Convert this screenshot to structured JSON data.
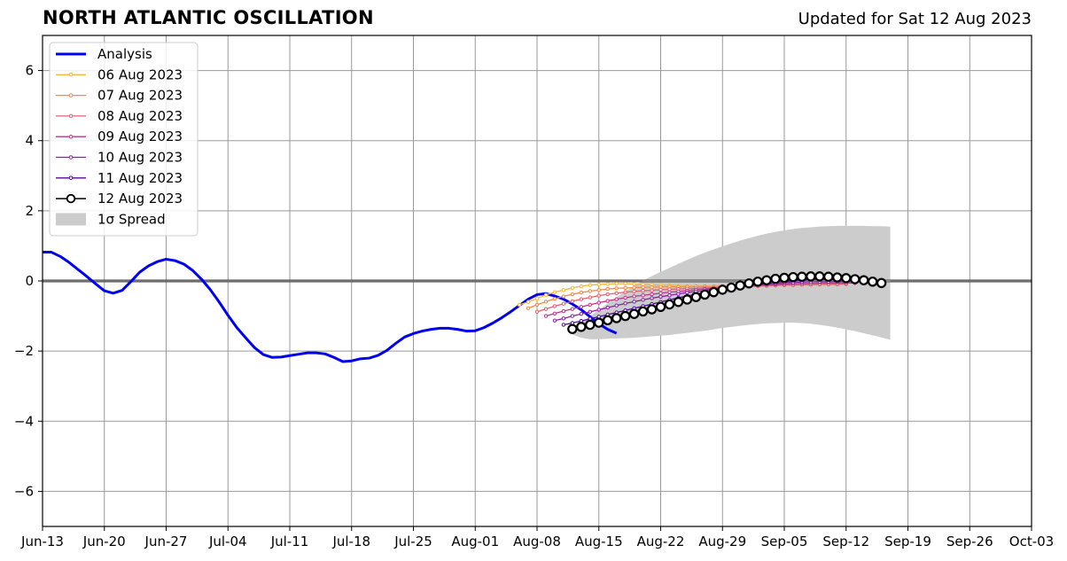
{
  "header": {
    "title": "NORTH ATLANTIC OSCILLATION",
    "subtitle": "Updated for Sat 12 Aug 2023"
  },
  "chart_data": {
    "type": "line",
    "title": "NORTH ATLANTIC OSCILLATION",
    "subtitle": "Updated for Sat 12 Aug 2023",
    "xlabel": "",
    "ylabel": "",
    "x_unit": "date",
    "xlim": [
      "2023-06-13",
      "2023-10-03"
    ],
    "ylim": [
      -7,
      7
    ],
    "x_ticks": [
      "Jun-13",
      "Jun-20",
      "Jun-27",
      "Jul-04",
      "Jul-11",
      "Jul-18",
      "Jul-25",
      "Aug-01",
      "Aug-08",
      "Aug-15",
      "Aug-22",
      "Aug-29",
      "Sep-05",
      "Sep-12",
      "Sep-19",
      "Sep-26",
      "Oct-03"
    ],
    "y_ticks": [
      -6,
      -4,
      -2,
      0,
      2,
      4,
      6
    ],
    "y_tick_labels": [
      "−6",
      "−4",
      "−2",
      "0",
      "2",
      "4",
      "6"
    ],
    "grid": true,
    "legend_position": "top-left",
    "zero_line": 0,
    "analysis": {
      "name": "Analysis",
      "color": "#0000ee",
      "start_date": "2023-06-13",
      "end_date": "2023-08-12",
      "values": [
        0.82,
        0.82,
        0.7,
        0.53,
        0.33,
        0.13,
        -0.08,
        -0.28,
        -0.35,
        -0.27,
        -0.02,
        0.25,
        0.43,
        0.55,
        0.62,
        0.58,
        0.48,
        0.3,
        0.05,
        -0.25,
        -0.6,
        -0.98,
        -1.33,
        -1.62,
        -1.9,
        -2.1,
        -2.18,
        -2.17,
        -2.13,
        -2.09,
        -2.05,
        -2.05,
        -2.08,
        -2.18,
        -2.3,
        -2.28,
        -2.22,
        -2.2,
        -2.12,
        -1.98,
        -1.78,
        -1.6,
        -1.5,
        -1.43,
        -1.38,
        -1.35,
        -1.35,
        -1.38,
        -1.43,
        -1.42,
        -1.33,
        -1.2,
        -1.05,
        -0.88,
        -0.7,
        -0.52,
        -0.39,
        -0.36,
        -0.43,
        -0.52,
        -0.66,
        -0.82,
        -1.02,
        -1.22,
        -1.38,
        -1.49
      ]
    },
    "forecasts": [
      {
        "name": "06 Aug 2023",
        "color": "#f5b83a",
        "start_date": "2023-08-06",
        "values": [
          -0.68,
          -0.6,
          -0.5,
          -0.4,
          -0.32,
          -0.26,
          -0.2,
          -0.15,
          -0.12,
          -0.1,
          -0.09,
          -0.08,
          -0.08,
          -0.09,
          -0.1,
          -0.11,
          -0.12,
          -0.13,
          -0.14,
          -0.15,
          -0.15,
          -0.15,
          -0.15,
          -0.15,
          -0.15,
          -0.14,
          -0.14,
          -0.14,
          -0.13,
          -0.13,
          -0.12,
          -0.12,
          -0.11,
          -0.11,
          -0.1,
          -0.1
        ]
      },
      {
        "name": "07 Aug 2023",
        "color": "#ef8a47",
        "start_date": "2023-08-07",
        "values": [
          -0.78,
          -0.68,
          -0.59,
          -0.51,
          -0.44,
          -0.38,
          -0.33,
          -0.29,
          -0.26,
          -0.23,
          -0.21,
          -0.2,
          -0.19,
          -0.18,
          -0.18,
          -0.17,
          -0.17,
          -0.17,
          -0.17,
          -0.16,
          -0.16,
          -0.16,
          -0.15,
          -0.15,
          -0.14,
          -0.14,
          -0.13,
          -0.13,
          -0.12,
          -0.12,
          -0.11,
          -0.11,
          -0.1,
          -0.1,
          -0.09,
          -0.09
        ]
      },
      {
        "name": "08 Aug 2023",
        "color": "#e0626e",
        "start_date": "2023-08-08",
        "values": [
          -0.88,
          -0.8,
          -0.72,
          -0.65,
          -0.58,
          -0.52,
          -0.47,
          -0.42,
          -0.38,
          -0.35,
          -0.32,
          -0.3,
          -0.28,
          -0.27,
          -0.25,
          -0.24,
          -0.23,
          -0.22,
          -0.21,
          -0.2,
          -0.19,
          -0.18,
          -0.17,
          -0.16,
          -0.15,
          -0.15,
          -0.14,
          -0.13,
          -0.12,
          -0.12,
          -0.11,
          -0.11,
          -0.1,
          -0.1,
          -0.1,
          -0.09
        ]
      },
      {
        "name": "09 Aug 2023",
        "color": "#b8378c",
        "start_date": "2023-08-09",
        "values": [
          -1.0,
          -0.93,
          -0.86,
          -0.8,
          -0.74,
          -0.68,
          -0.62,
          -0.57,
          -0.52,
          -0.48,
          -0.44,
          -0.41,
          -0.38,
          -0.35,
          -0.32,
          -0.3,
          -0.28,
          -0.25,
          -0.23,
          -0.21,
          -0.19,
          -0.17,
          -0.15,
          -0.14,
          -0.12,
          -0.11,
          -0.1,
          -0.09,
          -0.08,
          -0.07,
          -0.07,
          -0.06,
          -0.06,
          -0.06,
          -0.06,
          -0.06
        ]
      },
      {
        "name": "10 Aug 2023",
        "color": "#8b1fa3",
        "start_date": "2023-08-10",
        "values": [
          -1.13,
          -1.07,
          -1.0,
          -0.94,
          -0.88,
          -0.82,
          -0.76,
          -0.7,
          -0.64,
          -0.59,
          -0.54,
          -0.49,
          -0.45,
          -0.41,
          -0.37,
          -0.33,
          -0.3,
          -0.27,
          -0.24,
          -0.21,
          -0.18,
          -0.16,
          -0.13,
          -0.11,
          -0.09,
          -0.07,
          -0.05,
          -0.04,
          -0.03,
          -0.02,
          -0.02,
          -0.02,
          -0.02,
          -0.02,
          -0.02,
          -0.02
        ]
      },
      {
        "name": "11 Aug 2023",
        "color": "#4b0c91",
        "start_date": "2023-08-11",
        "values": [
          -1.25,
          -1.2,
          -1.14,
          -1.08,
          -1.02,
          -0.96,
          -0.9,
          -0.84,
          -0.78,
          -0.72,
          -0.66,
          -0.6,
          -0.54,
          -0.48,
          -0.43,
          -0.38,
          -0.33,
          -0.28,
          -0.24,
          -0.2,
          -0.16,
          -0.12,
          -0.09,
          -0.06,
          -0.03,
          -0.01,
          0.01,
          0.02,
          0.03,
          0.03,
          0.03,
          0.03,
          0.02,
          0.01,
          0.0,
          -0.01
        ]
      },
      {
        "name": "12 Aug 2023",
        "color": "#000000",
        "start_date": "2023-08-12",
        "values": [
          -1.37,
          -1.31,
          -1.25,
          -1.19,
          -1.12,
          -1.06,
          -1.0,
          -0.94,
          -0.87,
          -0.81,
          -0.74,
          -0.67,
          -0.6,
          -0.53,
          -0.46,
          -0.39,
          -0.32,
          -0.25,
          -0.19,
          -0.13,
          -0.07,
          -0.02,
          0.02,
          0.06,
          0.09,
          0.11,
          0.12,
          0.13,
          0.13,
          0.12,
          0.1,
          0.08,
          0.05,
          0.02,
          -0.02,
          -0.06
        ]
      }
    ],
    "spread": {
      "name": "1σ Spread",
      "color": "#cccccc",
      "start_date": "2023-08-12",
      "upper": [
        -1.35,
        -1.18,
        -1.0,
        -0.82,
        -0.64,
        -0.47,
        -0.3,
        -0.14,
        0.01,
        0.14,
        0.26,
        0.37,
        0.49,
        0.6,
        0.71,
        0.81,
        0.9,
        0.99,
        1.07,
        1.15,
        1.22,
        1.29,
        1.35,
        1.4,
        1.44,
        1.48,
        1.51,
        1.53,
        1.55,
        1.56,
        1.57,
        1.57,
        1.57,
        1.57,
        1.56,
        1.56,
        1.55
      ],
      "lower": [
        -1.53,
        -1.62,
        -1.66,
        -1.66,
        -1.65,
        -1.64,
        -1.63,
        -1.62,
        -1.6,
        -1.58,
        -1.56,
        -1.54,
        -1.51,
        -1.48,
        -1.45,
        -1.42,
        -1.38,
        -1.34,
        -1.31,
        -1.28,
        -1.25,
        -1.23,
        -1.21,
        -1.2,
        -1.19,
        -1.19,
        -1.2,
        -1.22,
        -1.25,
        -1.29,
        -1.33,
        -1.38,
        -1.43,
        -1.49,
        -1.55,
        -1.61,
        -1.68
      ]
    }
  }
}
